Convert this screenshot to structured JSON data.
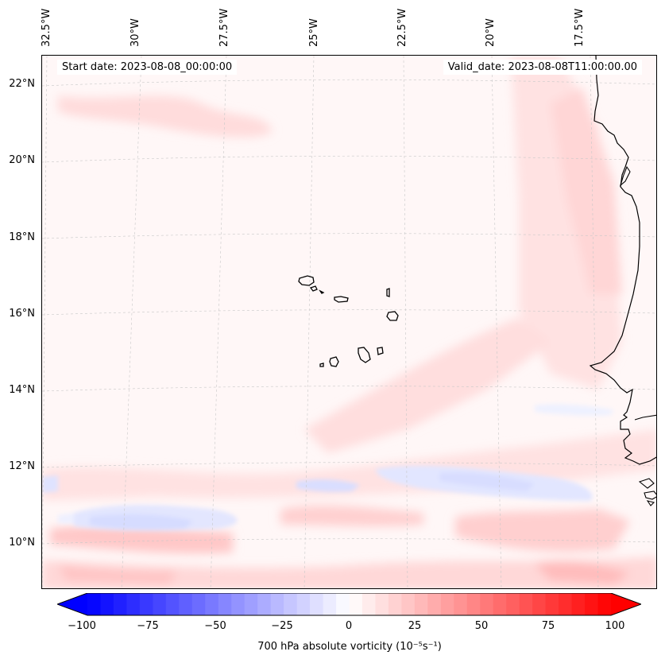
{
  "map": {
    "start_date": "Start date: 2023-08-08_00:00:00",
    "valid_date": "Valid_date: 2023-08-08T11:00:00.00",
    "longitude_labels": [
      "32.5°W",
      "30°W",
      "27.5°W",
      "25°W",
      "22.5°W",
      "20°W",
      "17.5°W"
    ],
    "latitude_labels": [
      "22°N",
      "20°N",
      "18°N",
      "16°N",
      "14°N",
      "12°N",
      "10°N"
    ],
    "variable": "700 hPa absolute vorticity",
    "units": "10^-5 s^-1",
    "colorbar": {
      "min": -100,
      "max": 100,
      "ticks": [
        "−100",
        "−75",
        "−50",
        "−25",
        "0",
        "25",
        "50",
        "75",
        "100"
      ],
      "label": "700 hPa absolute vorticity (10⁻⁵s⁻¹)",
      "color_low": "#0000ff",
      "color_mid": "#ffffff",
      "color_high": "#ff0000"
    },
    "features": [
      "Cape Verde islands",
      "West African coastline"
    ]
  }
}
